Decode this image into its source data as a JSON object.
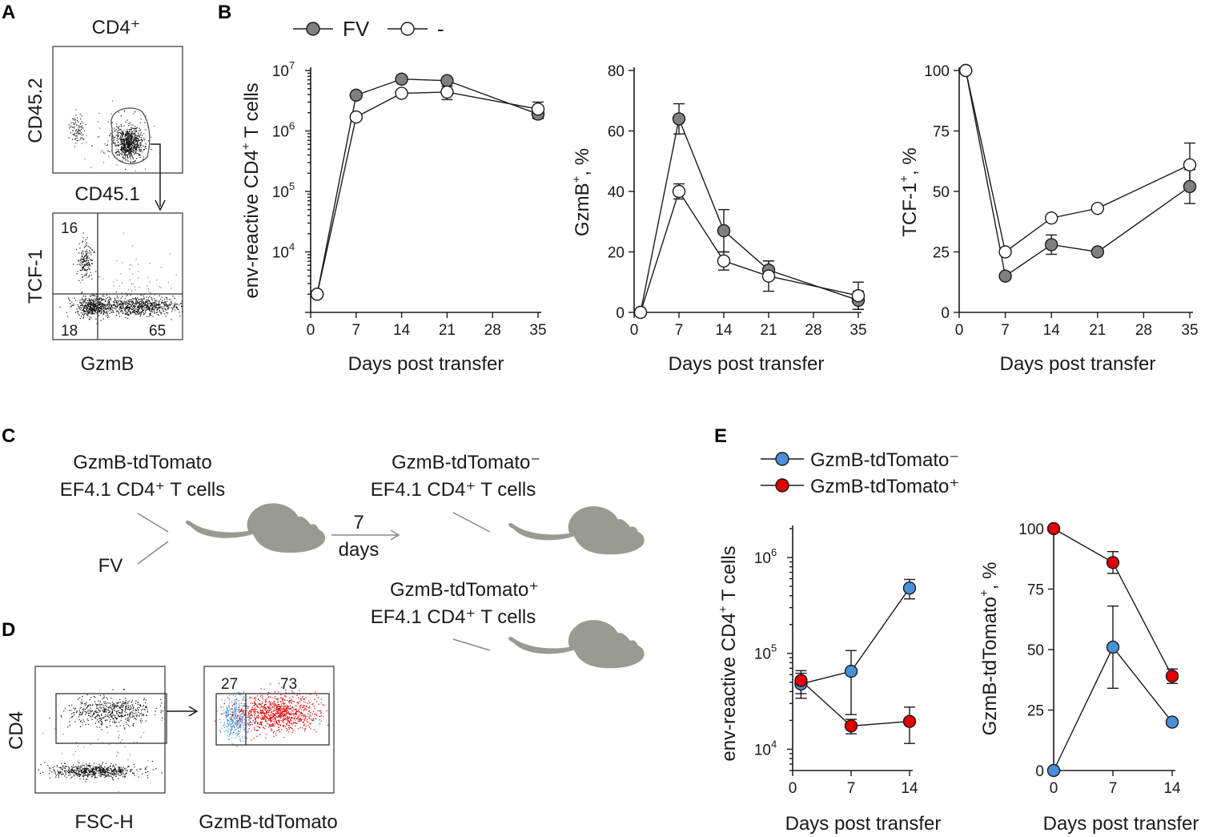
{
  "panels": {
    "A": "A",
    "B": "B",
    "C": "C",
    "D": "D",
    "E": "E"
  },
  "panel_a": {
    "title": "CD4⁺",
    "top_y_label": "CD45.2",
    "top_x_label": "CD45.1",
    "bottom_y_label": "TCF-1",
    "bottom_x_label": "GzmB",
    "q_tl": "16",
    "q_bl": "18",
    "q_br": "65"
  },
  "panel_c": {
    "donor_line1": "GzmB-tdTomato",
    "donor_line2": "EF4.1 CD4⁺ T cells",
    "infection": "FV",
    "arrow_top": "7",
    "arrow_bottom": "days",
    "neg_line1": "GzmB-tdTomato⁻",
    "neg_line2": "EF4.1 CD4⁺ T cells",
    "pos_line1": "GzmB-tdTomato⁺",
    "pos_line2": "EF4.1 CD4⁺ T cells"
  },
  "panel_d": {
    "y_label": "CD4",
    "x_label_left": "FSC-H",
    "x_label_right": "GzmB-tdTomato",
    "pct_neg": "27",
    "pct_pos": "73"
  },
  "legend_b": {
    "fv": "FV",
    "ctrl": "-"
  },
  "legend_e": {
    "neg": "GzmB-tdTomato⁻",
    "pos": "GzmB-tdTomato⁺"
  },
  "colors": {
    "fv": "#808080",
    "ctrl": "#ffffff",
    "neg": "#4a90d9",
    "pos": "#e00000",
    "mouse": "#9a9a94"
  },
  "chart_data": [
    {
      "id": "B1",
      "type": "line",
      "scale": "log",
      "title": "",
      "xlabel": "Days post transfer",
      "ylabel_main": "env-reactive  CD4",
      "ylabel_sup": "+",
      "ylabel_tail": " T cells",
      "xlim": [
        0,
        35
      ],
      "xticks": [
        0,
        7,
        14,
        21,
        28,
        35
      ],
      "ylim": [
        1000,
        10000000
      ],
      "yticks": [
        {
          "v": 10000,
          "b": "10",
          "e": "4"
        },
        {
          "v": 100000,
          "b": "10",
          "e": "5"
        },
        {
          "v": 1000000,
          "b": "10",
          "e": "6"
        },
        {
          "v": 10000000,
          "b": "10",
          "e": "7"
        }
      ],
      "series": [
        {
          "name": "FV",
          "fill": "#808080",
          "x": [
            1,
            7,
            14,
            21,
            35
          ],
          "y": [
            2000,
            3900000,
            7200000,
            6800000,
            1900000
          ],
          "err": [
            0,
            0,
            0,
            0,
            250000
          ]
        },
        {
          "name": "-",
          "fill": "#ffffff",
          "x": [
            1,
            7,
            14,
            21,
            35
          ],
          "y": [
            2000,
            1700000,
            4200000,
            4400000,
            2300000
          ],
          "err": [
            0,
            0,
            0,
            1100000,
            700000
          ]
        }
      ]
    },
    {
      "id": "B2",
      "type": "line",
      "scale": "linear",
      "title": "",
      "xlabel": "Days post transfer",
      "ylabel_main": "GzmB",
      "ylabel_sup": "+",
      "ylabel_tail": ", %",
      "xlim": [
        0,
        35
      ],
      "xticks": [
        0,
        7,
        14,
        21,
        28,
        35
      ],
      "ylim": [
        0,
        80
      ],
      "yticks": [
        0,
        20,
        40,
        60,
        80
      ],
      "series": [
        {
          "name": "FV",
          "fill": "#808080",
          "x": [
            1,
            7,
            14,
            21,
            35
          ],
          "y": [
            0,
            64,
            27,
            14,
            4
          ],
          "err": [
            0,
            5,
            7,
            3,
            3
          ]
        },
        {
          "name": "-",
          "fill": "#ffffff",
          "x": [
            1,
            7,
            14,
            21,
            35
          ],
          "y": [
            0,
            40,
            17,
            12,
            5.5
          ],
          "err": [
            0,
            2.5,
            3,
            5,
            4.5
          ]
        }
      ]
    },
    {
      "id": "B3",
      "type": "line",
      "scale": "linear",
      "title": "",
      "xlabel": "Days post transfer",
      "ylabel_main": "TCF-1",
      "ylabel_sup": "+",
      "ylabel_tail": ", %",
      "xlim": [
        0,
        35
      ],
      "xticks": [
        0,
        7,
        14,
        21,
        28,
        35
      ],
      "ylim": [
        0,
        100
      ],
      "yticks": [
        0,
        25,
        50,
        75,
        100
      ],
      "series": [
        {
          "name": "FV",
          "fill": "#808080",
          "x": [
            1,
            7,
            14,
            21,
            35
          ],
          "y": [
            100,
            15,
            28,
            25,
            52
          ],
          "err": [
            0,
            0,
            4,
            0,
            7
          ]
        },
        {
          "name": "-",
          "fill": "#ffffff",
          "x": [
            1,
            7,
            14,
            21,
            35
          ],
          "y": [
            100,
            25,
            39,
            43,
            61
          ],
          "err": [
            0,
            0,
            0,
            0,
            9
          ]
        }
      ]
    },
    {
      "id": "E1",
      "type": "line",
      "scale": "log",
      "title": "",
      "xlabel": "Days post transfer",
      "ylabel_main": "env-reactive  CD4",
      "ylabel_sup": "+",
      "ylabel_tail": " T cells",
      "xlim": [
        0,
        14
      ],
      "xticks": [
        0,
        7,
        14
      ],
      "ylim": [
        6000,
        2000000
      ],
      "yticks": [
        {
          "v": 10000,
          "b": "10",
          "e": "4"
        },
        {
          "v": 100000,
          "b": "10",
          "e": "5"
        },
        {
          "v": 1000000,
          "b": "10",
          "e": "6"
        }
      ],
      "series": [
        {
          "name": "GzmB-tdTomato⁻",
          "fill": "#4a90d9",
          "x": [
            1,
            7,
            14
          ],
          "y": [
            48000,
            65000,
            480000
          ],
          "err": [
            14000,
            42000,
            110000
          ]
        },
        {
          "name": "GzmB-tdTomato⁺",
          "fill": "#e00000",
          "x": [
            1,
            7,
            14
          ],
          "y": [
            52000,
            17500,
            19500
          ],
          "err": [
            14000,
            3000,
            8000
          ]
        }
      ]
    },
    {
      "id": "E2",
      "type": "line",
      "scale": "linear",
      "title": "",
      "xlabel": "Days post transfer",
      "ylabel_main": "GzmB-tdTomato",
      "ylabel_sup": "+",
      "ylabel_tail": ", %",
      "xlim": [
        0,
        14
      ],
      "xticks": [
        0,
        7,
        14
      ],
      "ylim": [
        0,
        100
      ],
      "yticks": [
        0,
        25,
        50,
        75,
        100
      ],
      "series": [
        {
          "name": "GzmB-tdTomato⁻",
          "fill": "#4a90d9",
          "x": [
            0,
            7,
            14
          ],
          "y": [
            0,
            51,
            20
          ],
          "err": [
            0,
            17,
            0
          ]
        },
        {
          "name": "GzmB-tdTomato⁺",
          "fill": "#e00000",
          "x": [
            0,
            7,
            14
          ],
          "y": [
            100,
            86,
            39
          ],
          "err": [
            0,
            4.5,
            3
          ]
        }
      ]
    }
  ]
}
